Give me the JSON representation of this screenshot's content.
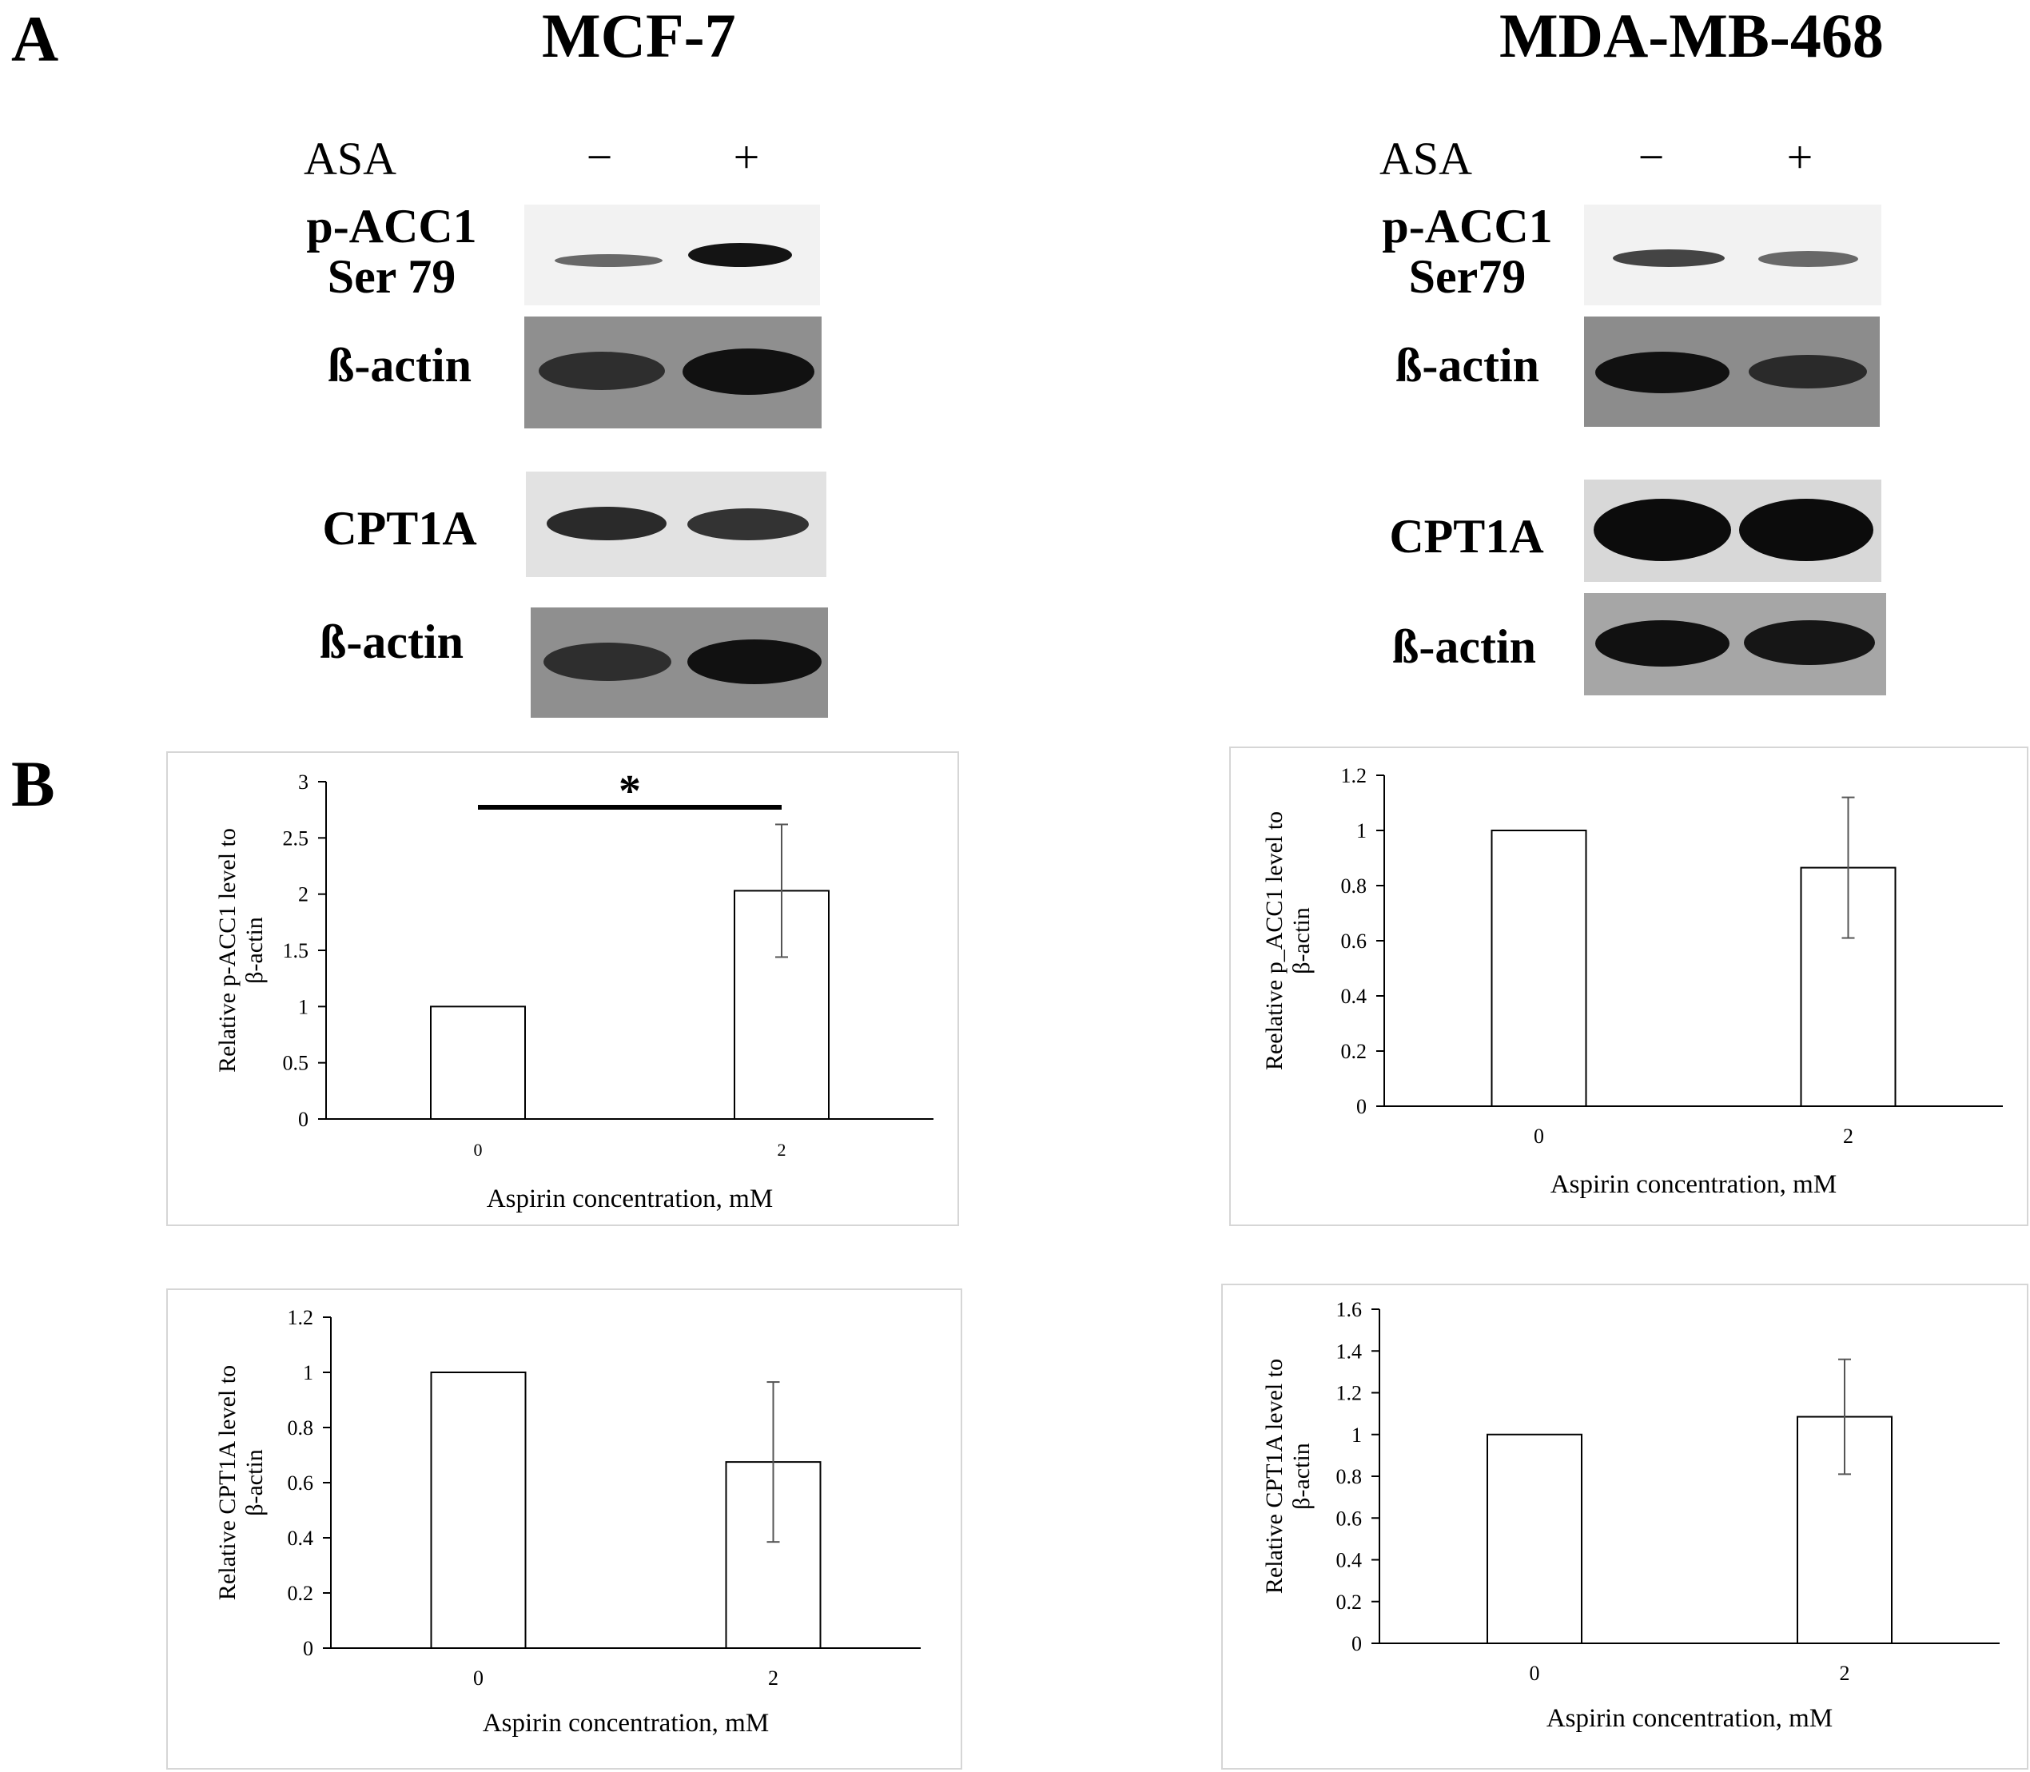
{
  "panel_labels": {
    "a": "A",
    "b": "B"
  },
  "cell_lines": {
    "left": "MCF-7",
    "right": "MDA-MB-468"
  },
  "blots": {
    "treatment_label": "ASA",
    "lane_signs": [
      "−",
      "+"
    ],
    "left": {
      "pacc1_line1": "p-ACC1",
      "pacc1_line2": "Ser 79",
      "actin1": "ß-actin",
      "cpt1a": "CPT1A",
      "actin2": "ß-actin"
    },
    "right": {
      "pacc1_line1": "p-ACC1",
      "pacc1_line2": "Ser79",
      "actin1": "ß-actin",
      "cpt1a": "CPT1A",
      "actin2": "ß-actin"
    }
  },
  "colors": {
    "bar_fill": "#ffffff",
    "bar_stroke": "#000000",
    "axis": "#000000",
    "error_bar": "#555555",
    "frame": "#d6d6d6"
  },
  "chart_data": [
    {
      "id": "mcf7-pacc1",
      "type": "bar",
      "categories": [
        "0",
        "2"
      ],
      "values": [
        1,
        2.03
      ],
      "error": [
        0,
        0.59
      ],
      "ylim": [
        0,
        3
      ],
      "yticks": [
        "0",
        "0.5",
        "1",
        "1.5",
        "2",
        "2.5",
        "3"
      ],
      "ylabel_line1": "Relative p-ACC1 level to",
      "ylabel_line2": "β-actin",
      "xlabel": "Aspirin concentration, mM",
      "significance": "*"
    },
    {
      "id": "mda-pacc1",
      "type": "bar",
      "categories": [
        "0",
        "2"
      ],
      "values": [
        1,
        0.865
      ],
      "error": [
        0,
        0.255
      ],
      "ylim": [
        0,
        1.2
      ],
      "yticks": [
        "0",
        "0.2",
        "0.4",
        "0.6",
        "0.8",
        "1",
        "1.2"
      ],
      "ylabel_line1": "Reelative p_ACC1 level to",
      "ylabel_line2": "β-actin",
      "xlabel": "Aspirin concentration, mM"
    },
    {
      "id": "mcf7-cpt1a",
      "type": "bar",
      "categories": [
        "0",
        "2"
      ],
      "values": [
        1,
        0.675
      ],
      "error": [
        0,
        0.29
      ],
      "ylim": [
        0,
        1.2
      ],
      "yticks": [
        "0",
        "0.2",
        "0.4",
        "0.6",
        "0.8",
        "1",
        "1.2"
      ],
      "ylabel_line1": "Relative CPT1A level to",
      "ylabel_line2": "β-actin",
      "xlabel": "Aspirin concentration, mM"
    },
    {
      "id": "mda-cpt1a",
      "type": "bar",
      "categories": [
        "0",
        "2"
      ],
      "values": [
        1,
        1.085
      ],
      "error": [
        0,
        0.275
      ],
      "ylim": [
        0,
        1.6
      ],
      "yticks": [
        "0",
        "0.2",
        "0.4",
        "0.6",
        "0.8",
        "1",
        "1.2",
        "1.4",
        "1.6"
      ],
      "ylabel_line1": "Relative CPT1A level to",
      "ylabel_line2": "β-actin",
      "xlabel": "Aspirin concentration, mM"
    }
  ]
}
